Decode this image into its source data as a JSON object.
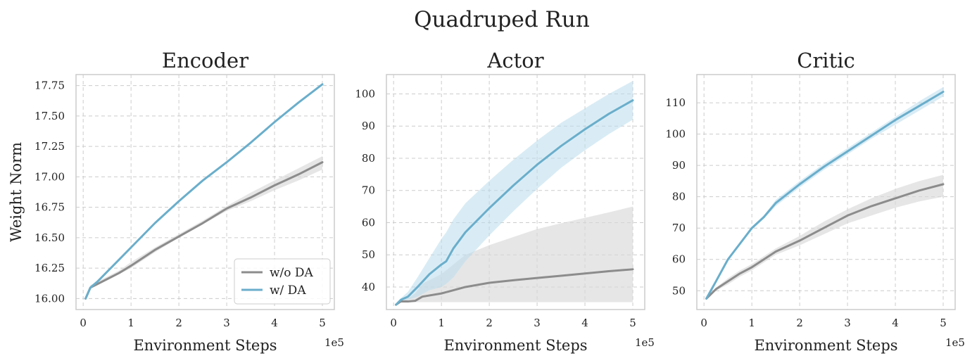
{
  "figure": {
    "suptitle": "Quadruped Run",
    "colors": {
      "without_da": "#8c8c8c",
      "with_da": "#6aaecb",
      "without_da_band": "#d9d9d9",
      "with_da_band": "#b9dcec",
      "grid": "#cccccc",
      "spine": "#cccccc"
    }
  },
  "chart_data": [
    {
      "type": "line",
      "title": "Encoder",
      "xlabel": "Environment Steps",
      "ylabel": "Weight Norm",
      "x_offset_label": "1e5",
      "xlim": [
        -0.15,
        5.25
      ],
      "ylim": [
        15.91,
        17.84
      ],
      "xticks": [
        0,
        1,
        2,
        3,
        4,
        5
      ],
      "yticks": [
        16.0,
        16.25,
        16.5,
        16.75,
        17.0,
        17.25,
        17.5,
        17.75
      ],
      "ytick_labels": [
        "16.00",
        "16.25",
        "16.50",
        "16.75",
        "17.00",
        "17.25",
        "17.50",
        "17.75"
      ],
      "grid": true,
      "legend": {
        "placement": "lower-right",
        "entries": [
          "w/o DA",
          "w/ DA"
        ]
      },
      "series": [
        {
          "name": "w/o DA",
          "x": [
            0.05,
            0.15,
            0.3,
            0.5,
            0.75,
            1.0,
            1.5,
            2.0,
            2.5,
            3.0,
            3.5,
            4.0,
            4.5,
            5.0
          ],
          "y": [
            16.0,
            16.09,
            16.12,
            16.16,
            16.21,
            16.27,
            16.4,
            16.51,
            16.62,
            16.74,
            16.83,
            16.93,
            17.02,
            17.12
          ],
          "lower": [
            16.0,
            16.08,
            16.11,
            16.15,
            16.2,
            16.25,
            16.38,
            16.5,
            16.61,
            16.72,
            16.8,
            16.89,
            16.97,
            17.06
          ],
          "upper": [
            16.0,
            16.11,
            16.14,
            16.18,
            16.23,
            16.3,
            16.42,
            16.53,
            16.64,
            16.76,
            16.87,
            16.97,
            17.07,
            17.17
          ]
        },
        {
          "name": "w/ DA",
          "x": [
            0.05,
            0.15,
            0.3,
            0.5,
            0.75,
            1.0,
            1.5,
            2.0,
            2.5,
            3.0,
            3.5,
            4.0,
            4.5,
            5.0
          ],
          "y": [
            16.0,
            16.09,
            16.14,
            16.22,
            16.32,
            16.42,
            16.62,
            16.8,
            16.97,
            17.12,
            17.28,
            17.45,
            17.61,
            17.76
          ],
          "lower": [
            16.0,
            16.09,
            16.14,
            16.22,
            16.32,
            16.42,
            16.62,
            16.8,
            16.97,
            17.12,
            17.28,
            17.45,
            17.61,
            17.76
          ],
          "upper": [
            16.0,
            16.09,
            16.14,
            16.22,
            16.32,
            16.42,
            16.62,
            16.8,
            16.97,
            17.12,
            17.28,
            17.45,
            17.61,
            17.76
          ]
        }
      ]
    },
    {
      "type": "line",
      "title": "Actor",
      "xlabel": "Environment Steps",
      "ylabel": "",
      "x_offset_label": "1e5",
      "xlim": [
        -0.15,
        5.25
      ],
      "ylim": [
        33,
        106
      ],
      "xticks": [
        0,
        1,
        2,
        3,
        4,
        5
      ],
      "yticks": [
        40,
        50,
        60,
        70,
        80,
        90,
        100
      ],
      "ytick_labels": [
        "40",
        "50",
        "60",
        "70",
        "80",
        "90",
        "100"
      ],
      "grid": true,
      "series": [
        {
          "name": "w/o DA",
          "x": [
            0.05,
            0.15,
            0.3,
            0.45,
            0.6,
            1.0,
            1.5,
            2.0,
            2.5,
            3.0,
            3.5,
            4.0,
            4.5,
            5.0
          ],
          "y": [
            34.5,
            35.5,
            35.5,
            35.7,
            37.0,
            38.0,
            40.0,
            41.3,
            42.1,
            42.8,
            43.5,
            44.2,
            44.9,
            45.5
          ],
          "lower": [
            34.5,
            35.3,
            35.3,
            35.3,
            35.3,
            35.3,
            35.3,
            35.3,
            35.3,
            35.3,
            35.3,
            35.3,
            35.3,
            35.3
          ],
          "upper": [
            34.5,
            36.0,
            36.5,
            38.0,
            41.0,
            44.0,
            50.0,
            53.0,
            55.5,
            58.0,
            59.8,
            61.5,
            63.2,
            65.0
          ]
        },
        {
          "name": "w/ DA",
          "x": [
            0.05,
            0.15,
            0.3,
            0.5,
            0.75,
            1.0,
            1.1,
            1.25,
            1.5,
            2.0,
            2.5,
            3.0,
            3.5,
            4.0,
            4.5,
            5.0
          ],
          "y": [
            34.5,
            36.0,
            37.0,
            40.0,
            44.0,
            47.0,
            48.0,
            52.0,
            57.0,
            64.5,
            71.5,
            78.0,
            83.8,
            89.0,
            93.8,
            98.0
          ],
          "lower": [
            34.5,
            35.5,
            36.0,
            37.0,
            39.0,
            40.0,
            41.0,
            43.0,
            48.0,
            56.0,
            63.5,
            70.5,
            77.0,
            82.5,
            87.5,
            92.0
          ],
          "upper": [
            34.5,
            36.5,
            38.5,
            43.0,
            49.0,
            55.0,
            57.0,
            61.0,
            66.0,
            73.0,
            79.5,
            85.5,
            91.0,
            95.5,
            100.0,
            104.0
          ]
        }
      ]
    },
    {
      "type": "line",
      "title": "Critic",
      "xlabel": "Environment Steps",
      "ylabel": "",
      "x_offset_label": "1e5",
      "xlim": [
        -0.15,
        5.25
      ],
      "ylim": [
        44,
        119
      ],
      "xticks": [
        0,
        1,
        2,
        3,
        4,
        5
      ],
      "yticks": [
        50,
        60,
        70,
        80,
        90,
        100,
        110
      ],
      "ytick_labels": [
        "50",
        "60",
        "70",
        "80",
        "90",
        "100",
        "110"
      ],
      "grid": true,
      "series": [
        {
          "name": "w/o DA",
          "x": [
            0.05,
            0.25,
            0.5,
            0.75,
            1.0,
            1.5,
            2.0,
            2.5,
            3.0,
            3.5,
            4.0,
            4.5,
            5.0
          ],
          "y": [
            47.5,
            50.5,
            53.0,
            55.5,
            57.5,
            62.5,
            66.0,
            70.0,
            74.0,
            77.0,
            79.5,
            82.0,
            84.0
          ],
          "lower": [
            47.5,
            50.0,
            52.0,
            54.5,
            56.5,
            61.5,
            64.5,
            68.0,
            71.5,
            74.0,
            76.5,
            78.5,
            80.0
          ],
          "upper": [
            47.5,
            51.0,
            54.0,
            56.5,
            58.5,
            63.5,
            67.5,
            72.0,
            76.0,
            79.5,
            82.5,
            85.0,
            87.0
          ]
        },
        {
          "name": "w/ DA",
          "x": [
            0.05,
            0.25,
            0.5,
            0.75,
            1.0,
            1.25,
            1.5,
            2.0,
            2.5,
            3.0,
            3.5,
            4.0,
            4.5,
            5.0
          ],
          "y": [
            47.5,
            53.0,
            60.0,
            65.0,
            70.0,
            73.5,
            78.0,
            84.0,
            89.5,
            94.5,
            99.5,
            104.5,
            109.0,
            113.5
          ],
          "lower": [
            47.5,
            52.5,
            59.5,
            64.5,
            69.5,
            73.0,
            77.0,
            83.0,
            88.5,
            93.5,
            98.5,
            103.0,
            107.5,
            112.0
          ],
          "upper": [
            47.5,
            53.5,
            60.5,
            65.5,
            70.5,
            74.0,
            79.0,
            85.0,
            90.5,
            95.5,
            100.5,
            105.5,
            110.5,
            115.0
          ]
        }
      ]
    }
  ]
}
